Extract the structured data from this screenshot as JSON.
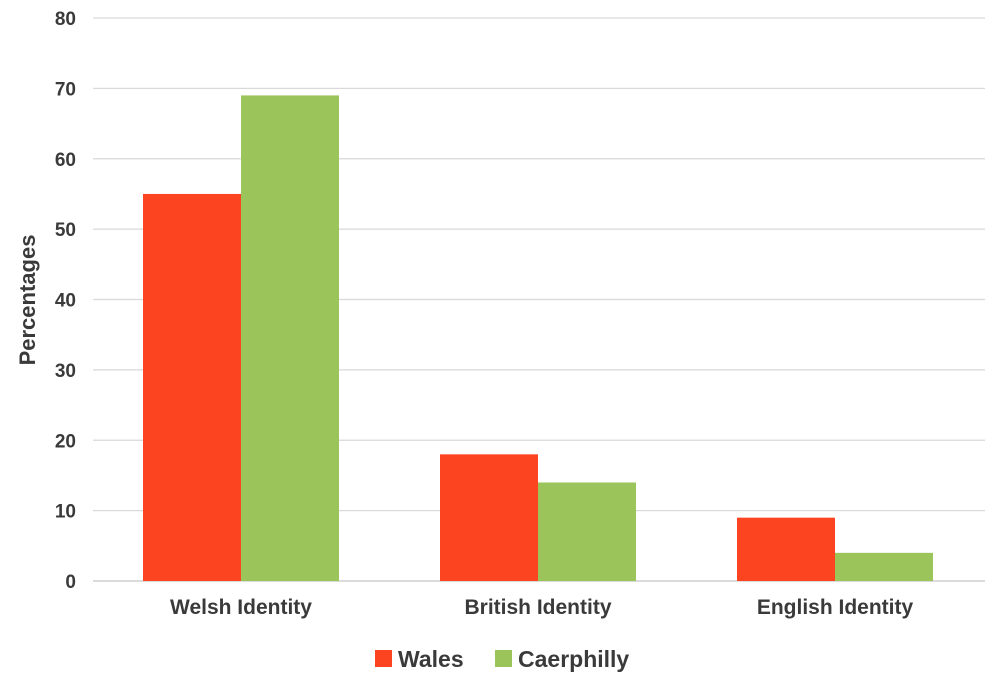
{
  "chart_data": {
    "type": "bar",
    "title": "",
    "xlabel": "",
    "ylabel": "Percentages",
    "ylim": [
      0,
      80
    ],
    "yticks": [
      0,
      10,
      20,
      30,
      40,
      50,
      60,
      70,
      80
    ],
    "grid": true,
    "legend_position": "bottom",
    "categories": [
      "Welsh Identity",
      "British Identity",
      "English Identity"
    ],
    "series": [
      {
        "name": "Wales",
        "color": "#fc4420",
        "values": [
          55,
          18,
          9
        ]
      },
      {
        "name": "Caerphilly",
        "color": "#9bc55a",
        "values": [
          69,
          14,
          4
        ]
      }
    ]
  }
}
